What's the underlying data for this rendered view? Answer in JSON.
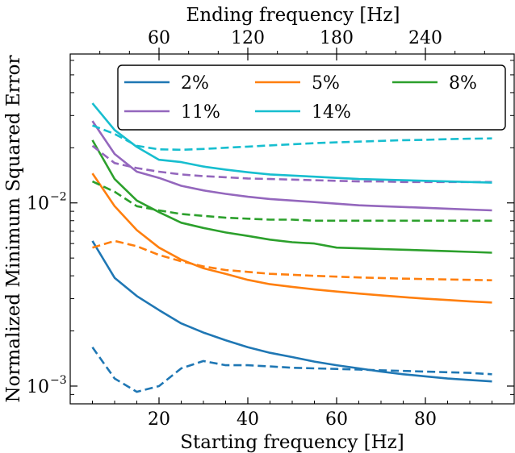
{
  "chart_data": {
    "type": "line",
    "xlabel": "Starting frequency [Hz]",
    "ylabel": "Normalized Minimum Squared Error",
    "top_xlabel": "Ending frequency [Hz]",
    "xlim": [
      0,
      100
    ],
    "ylim": [
      0.0008,
      0.065
    ],
    "y_scale": "log",
    "xticks": [
      20,
      40,
      60,
      80
    ],
    "xtick_labels": [
      "20",
      "40",
      "60",
      "80"
    ],
    "top_xticks": [
      60,
      120,
      180,
      240
    ],
    "top_xtick_labels": [
      "60",
      "120",
      "180",
      "240"
    ],
    "top_axis_range": [
      0,
      300
    ],
    "yticks_major": [
      0.001,
      0.01
    ],
    "ytick_labels": [
      {
        "base": "10",
        "exp": "−3"
      },
      {
        "base": "10",
        "exp": "−2"
      }
    ],
    "grid": false,
    "legend_placement": "upper center",
    "legend_columns": 3,
    "line_styles": {
      "solid": "starting frequency",
      "dashed": "ending frequency"
    },
    "series": [
      {
        "name": "2%",
        "color": "#1f77b4",
        "solid": {
          "x": [
            5,
            10,
            15,
            20,
            25,
            30,
            35,
            40,
            45,
            50,
            55,
            60,
            65,
            70,
            75,
            80,
            85,
            90,
            95
          ],
          "y": [
            0.0062,
            0.0039,
            0.0031,
            0.0026,
            0.0022,
            0.00196,
            0.00178,
            0.00163,
            0.00152,
            0.00144,
            0.00136,
            0.0013,
            0.00125,
            0.0012,
            0.00116,
            0.00113,
            0.0011,
            0.00108,
            0.00106
          ]
        },
        "dashed": {
          "x": [
            5,
            10,
            15,
            20,
            25,
            30,
            35,
            40,
            45,
            50,
            55,
            60,
            65,
            70,
            75,
            80,
            85,
            90,
            95
          ],
          "y": [
            0.00163,
            0.0011,
            0.00093,
            0.001,
            0.00125,
            0.00137,
            0.0013,
            0.0013,
            0.00128,
            0.00126,
            0.00125,
            0.00124,
            0.00123,
            0.00122,
            0.00121,
            0.0012,
            0.00119,
            0.00118,
            0.00116
          ]
        }
      },
      {
        "name": "5%",
        "color": "#ff7f0e",
        "solid": {
          "x": [
            5,
            10,
            15,
            20,
            25,
            30,
            35,
            40,
            45,
            50,
            55,
            60,
            65,
            70,
            75,
            80,
            85,
            90,
            95
          ],
          "y": [
            0.0145,
            0.0096,
            0.0071,
            0.0057,
            0.0049,
            0.0044,
            0.0041,
            0.0038,
            0.0036,
            0.00348,
            0.00337,
            0.00328,
            0.0032,
            0.00313,
            0.00306,
            0.003,
            0.00295,
            0.0029,
            0.00286
          ]
        },
        "dashed": {
          "x": [
            5,
            10,
            15,
            20,
            25,
            30,
            35,
            40,
            45,
            50,
            55,
            60,
            65,
            70,
            75,
            80,
            85,
            90,
            95
          ],
          "y": [
            0.0057,
            0.0062,
            0.0058,
            0.0052,
            0.0048,
            0.0045,
            0.0043,
            0.0042,
            0.0041,
            0.00405,
            0.004,
            0.00396,
            0.00392,
            0.00389,
            0.00386,
            0.00384,
            0.00382,
            0.0038,
            0.00378
          ]
        }
      },
      {
        "name": "8%",
        "color": "#2ca02c",
        "solid": {
          "x": [
            5,
            10,
            15,
            20,
            25,
            30,
            35,
            40,
            45,
            50,
            55,
            60,
            65,
            70,
            75,
            80,
            85,
            90,
            95
          ],
          "y": [
            0.022,
            0.0135,
            0.0103,
            0.0089,
            0.0078,
            0.0073,
            0.0069,
            0.0066,
            0.0063,
            0.0061,
            0.006,
            0.0057,
            0.00565,
            0.0056,
            0.00555,
            0.0055,
            0.00545,
            0.0054,
            0.00535
          ]
        },
        "dashed": {
          "x": [
            5,
            10,
            15,
            20,
            25,
            30,
            35,
            40,
            45,
            50,
            55,
            60,
            65,
            70,
            75,
            80,
            85,
            90,
            95
          ],
          "y": [
            0.0131,
            0.0115,
            0.0096,
            0.0091,
            0.0087,
            0.0085,
            0.0083,
            0.0082,
            0.0081,
            0.0081,
            0.008,
            0.008,
            0.008,
            0.008,
            0.008,
            0.008,
            0.008,
            0.008,
            0.008
          ]
        }
      },
      {
        "name": "11%",
        "color": "#9467bd",
        "solid": {
          "x": [
            5,
            10,
            15,
            20,
            25,
            30,
            35,
            40,
            45,
            50,
            55,
            60,
            65,
            70,
            75,
            80,
            85,
            90,
            95
          ],
          "y": [
            0.028,
            0.0185,
            0.0148,
            0.0137,
            0.0124,
            0.0117,
            0.0112,
            0.0108,
            0.0105,
            0.0103,
            0.0101,
            0.0099,
            0.0097,
            0.0096,
            0.0095,
            0.0094,
            0.0093,
            0.0092,
            0.0091
          ]
        },
        "dashed": {
          "x": [
            5,
            10,
            15,
            20,
            25,
            30,
            35,
            40,
            45,
            50,
            55,
            60,
            65,
            70,
            75,
            80,
            85,
            90,
            95
          ],
          "y": [
            0.0205,
            0.0165,
            0.0155,
            0.0148,
            0.0143,
            0.014,
            0.0138,
            0.0136,
            0.0135,
            0.0134,
            0.0133,
            0.0132,
            0.0131,
            0.0131,
            0.013,
            0.013,
            0.013,
            0.013,
            0.013
          ]
        }
      },
      {
        "name": "14%",
        "color": "#17becf",
        "solid": {
          "x": [
            5,
            10,
            15,
            20,
            25,
            30,
            35,
            40,
            45,
            50,
            55,
            60,
            65,
            70,
            75,
            80,
            85,
            90,
            95
          ],
          "y": [
            0.035,
            0.025,
            0.0202,
            0.0172,
            0.0167,
            0.0158,
            0.0152,
            0.0147,
            0.0143,
            0.0141,
            0.0139,
            0.0137,
            0.0135,
            0.0134,
            0.0133,
            0.0132,
            0.0131,
            0.013,
            0.0129
          ]
        },
        "dashed": {
          "x": [
            5,
            10,
            15,
            20,
            25,
            30,
            35,
            40,
            45,
            50,
            55,
            60,
            65,
            70,
            75,
            80,
            85,
            90,
            95
          ],
          "y": [
            0.0265,
            0.0238,
            0.0205,
            0.0196,
            0.0195,
            0.0197,
            0.02,
            0.0203,
            0.0206,
            0.0209,
            0.0212,
            0.0214,
            0.0216,
            0.0218,
            0.022,
            0.0221,
            0.0223,
            0.0224,
            0.0225
          ]
        }
      }
    ]
  }
}
